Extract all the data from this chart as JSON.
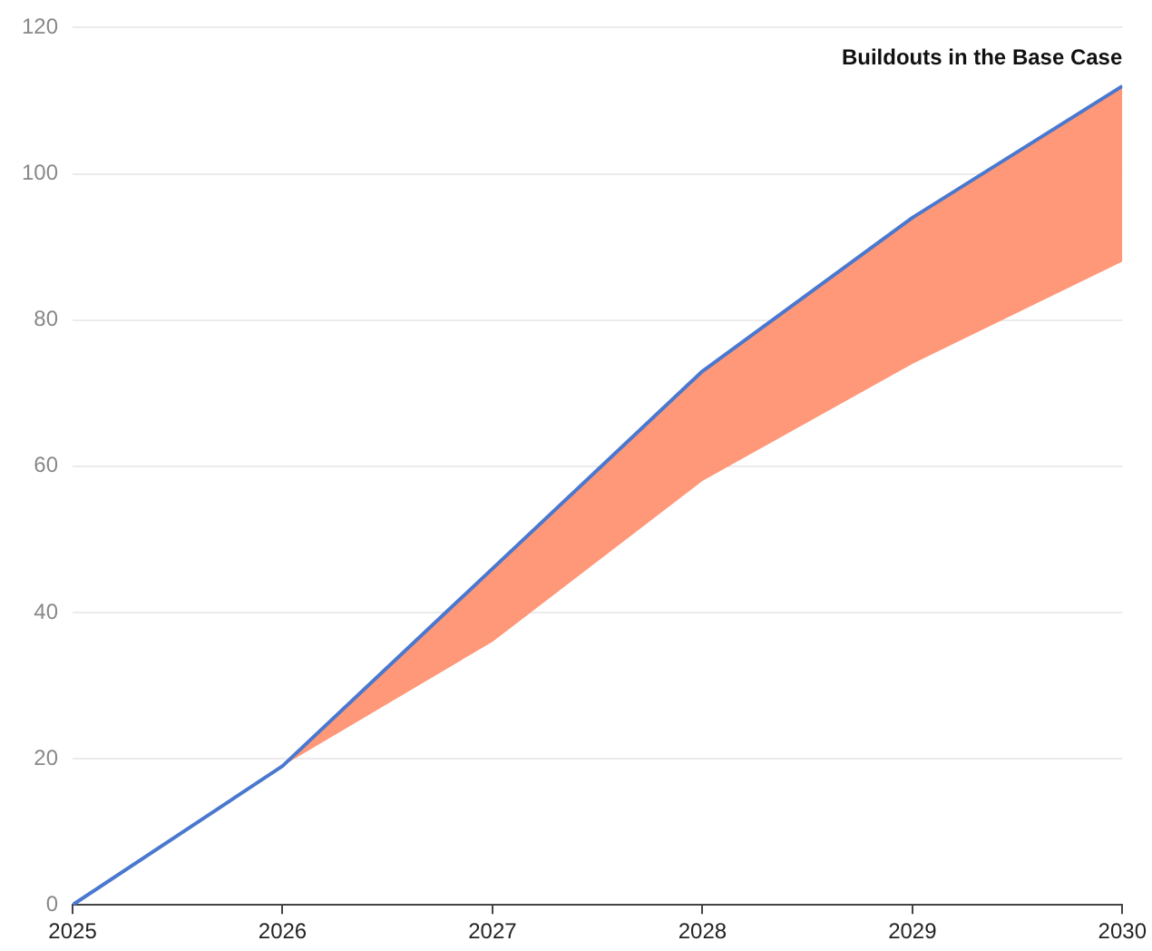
{
  "chart_data": {
    "type": "line",
    "x": [
      2025,
      2026,
      2027,
      2028,
      2029,
      2030
    ],
    "series": [
      {
        "color": "#4a78cf",
        "values": [
          0,
          19,
          46,
          73,
          94,
          112
        ],
        "lower": [
          0,
          19,
          36,
          58,
          74,
          88
        ],
        "upper": [
          0,
          19,
          46,
          73,
          94,
          112
        ]
      }
    ],
    "xlim": [
      2025,
      2030
    ],
    "xticks": [
      2025,
      2026,
      2027,
      2028,
      2029,
      2030
    ],
    "ylim": [
      0,
      120
    ],
    "yticks": [
      0,
      20,
      40,
      60,
      80,
      100,
      120
    ],
    "grid": "y",
    "legend": false,
    "marker": "none",
    "line_style": "solid",
    "annotations": [
      {
        "text": "Buildouts in the Base Case",
        "x": 2030,
        "y": 112
      }
    ]
  }
}
